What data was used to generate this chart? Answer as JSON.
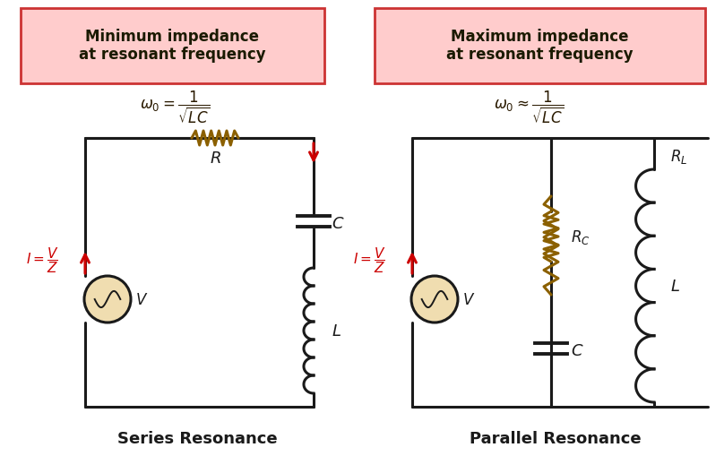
{
  "bg_color": "#ffffff",
  "box_fill": "#ffcccc",
  "box_edge_color": "#cc3333",
  "box_text_left": "Minimum impedance\nat resonant frequency",
  "box_text_right": "Maximum impedance\nat resonant frequency",
  "label_series": "Series Resonance",
  "label_parallel": "Parallel Resonance",
  "wire_color": "#1a1a1a",
  "comp_color": "#1a1a1a",
  "red_color": "#cc0000",
  "text_color": "#1a1a1a",
  "source_fill": "#f0ddb0",
  "resistor_color": "#8B6000",
  "inductor_color": "#1a1a1a"
}
